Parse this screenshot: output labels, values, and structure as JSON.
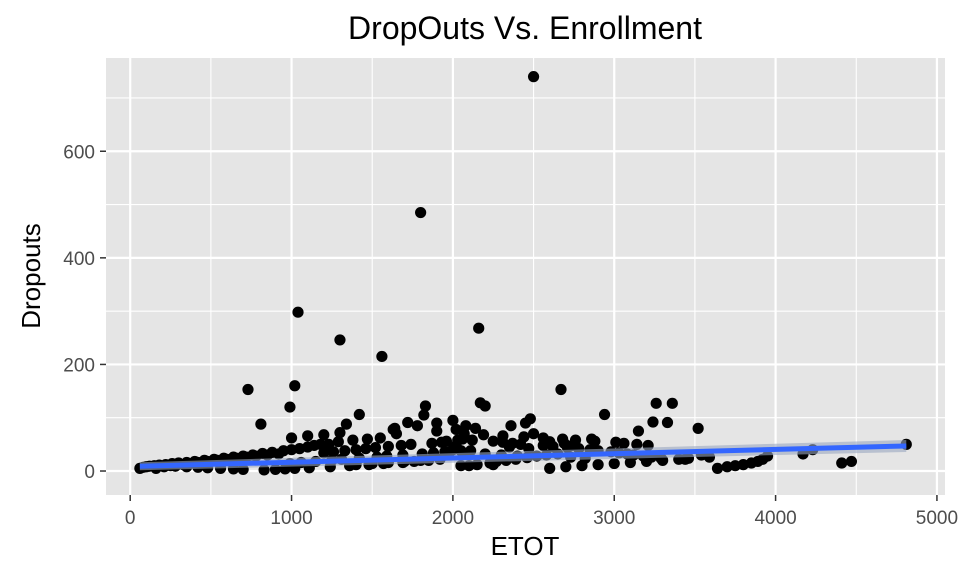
{
  "chart_data": {
    "type": "scatter",
    "title": "DropOuts Vs. Enrollment",
    "xlabel": "ETOT",
    "ylabel": "Dropouts",
    "xlim": [
      -150,
      5050
    ],
    "ylim": [
      -45,
      775
    ],
    "x_ticks": [
      0,
      1000,
      2000,
      3000,
      4000,
      5000
    ],
    "y_ticks": [
      0,
      200,
      400,
      600
    ],
    "x_minor_ticks": [
      500,
      1500,
      2500,
      3500,
      4500
    ],
    "y_minor_ticks": [
      100,
      300,
      500,
      700
    ],
    "grid": true,
    "colors": {
      "panel": "#e5e5e5",
      "grid": "#ffffff",
      "points": "#000000",
      "trend": "#3366ff",
      "trend_ribbon": "#9aa6bf"
    },
    "series": [
      {
        "kind": "points",
        "x": [
          2500,
          1800,
          1040,
          1300,
          1560,
          2160,
          1020,
          730,
          990,
          2670,
          2170,
          2200,
          1830,
          1820,
          1420,
          810,
          1340,
          1720,
          1640,
          2940,
          3260,
          3360,
          3330,
          3240,
          3150,
          3520,
          2480,
          2450,
          2080,
          2000,
          1900,
          1780,
          1630,
          1550,
          1470,
          1380,
          1290,
          1230,
          1180,
          1140,
          1100,
          1050,
          1000,
          950,
          880,
          820,
          760,
          700,
          640,
          580,
          520,
          460,
          400,
          350,
          300,
          260,
          220,
          180,
          150,
          120,
          100,
          80,
          60,
          160,
          210,
          250,
          330,
          370,
          420,
          480,
          540,
          600,
          660,
          720,
          780,
          850,
          920,
          1200,
          1260,
          1330,
          1400,
          1460,
          1520,
          1600,
          1680,
          1740,
          1870,
          1930,
          1960,
          2030,
          2060,
          2120,
          2250,
          2310,
          2370,
          2420,
          2560,
          2620,
          2710,
          2780,
          2850,
          2900,
          2980,
          3030,
          3080,
          3120,
          3180,
          3230,
          3290,
          3440,
          3590,
          3640,
          3700,
          3750,
          3800,
          3850,
          3890,
          3920,
          3950,
          4170,
          4230,
          4410,
          4470,
          4810,
          2020,
          2100,
          2150,
          2230,
          2270,
          2330,
          2390,
          2460,
          2520,
          2580,
          2650,
          2730,
          2820,
          1920,
          1850,
          1760,
          1690,
          1570,
          1480,
          1360,
          1240,
          1110,
          1020,
          960,
          900,
          830,
          700,
          640,
          560,
          480,
          420,
          350,
          280,
          2000,
          2050,
          1950,
          2100,
          2200,
          2300,
          2400,
          1800,
          1700,
          1600,
          1500,
          1400,
          2600,
          2700,
          2800,
          2900,
          3000,
          3100,
          3200,
          3300,
          3400,
          3460,
          3540,
          2070,
          2190,
          2310,
          2440,
          2560,
          2680,
          2760,
          2880,
          3010,
          3060,
          3140,
          3210,
          1000,
          1100,
          1200,
          1300,
          1650,
          1900,
          2020,
          2140,
          2360,
          2500,
          2860,
          2600,
          2690,
          2740,
          2350,
          2470,
          2110,
          1980,
          1880,
          1810,
          1690,
          1590,
          1530,
          1420,
          1310,
          1250,
          1150,
          1060,
          990,
          2250,
          2050
        ],
        "y": [
          740,
          485,
          298,
          246,
          215,
          268,
          160,
          153,
          120,
          153,
          128,
          122,
          122,
          105,
          106,
          88,
          88,
          91,
          80,
          106,
          127,
          127,
          91,
          92,
          75,
          80,
          98,
          90,
          85,
          95,
          90,
          85,
          78,
          62,
          60,
          58,
          55,
          50,
          50,
          48,
          45,
          42,
          40,
          38,
          35,
          33,
          30,
          28,
          26,
          24,
          22,
          20,
          18,
          16,
          15,
          14,
          12,
          11,
          10,
          9,
          8,
          7,
          5,
          5,
          8,
          10,
          12,
          14,
          16,
          18,
          20,
          22,
          24,
          26,
          28,
          30,
          32,
          34,
          36,
          38,
          40,
          42,
          44,
          46,
          48,
          50,
          52,
          54,
          56,
          58,
          60,
          58,
          56,
          54,
          52,
          50,
          48,
          46,
          44,
          42,
          40,
          38,
          36,
          34,
          32,
          30,
          28,
          26,
          24,
          22,
          26,
          5,
          8,
          10,
          12,
          15,
          18,
          22,
          28,
          32,
          40,
          15,
          18,
          50,
          48,
          10,
          12,
          15,
          18,
          20,
          22,
          25,
          28,
          30,
          32,
          26,
          24,
          22,
          20,
          18,
          16,
          14,
          12,
          10,
          8,
          6,
          5,
          4,
          3,
          2,
          3,
          4,
          5,
          6,
          7,
          8,
          9,
          40,
          38,
          36,
          34,
          32,
          30,
          28,
          20,
          18,
          16,
          14,
          12,
          5,
          8,
          10,
          12,
          14,
          16,
          18,
          20,
          22,
          24,
          30,
          70,
          68,
          66,
          64,
          62,
          60,
          58,
          56,
          54,
          52,
          50,
          48,
          62,
          66,
          68,
          72,
          70,
          75,
          78,
          80,
          85,
          70,
          60,
          55,
          52,
          48,
          45,
          42,
          38,
          36,
          34,
          32,
          30,
          28,
          26,
          24,
          22,
          20,
          18,
          16,
          14,
          12,
          10
        ]
      },
      {
        "kind": "trend",
        "x": [
          60,
          4810
        ],
        "y": [
          9,
          47
        ]
      }
    ]
  }
}
